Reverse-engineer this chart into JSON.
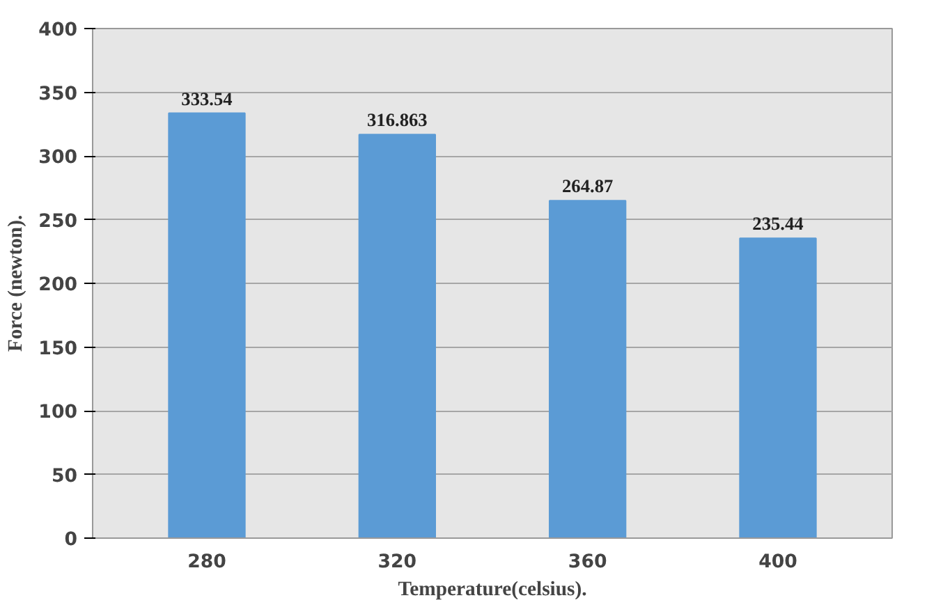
{
  "chart_data": {
    "type": "bar",
    "xlabel": "Temperature(celsius).",
    "ylabel": "Force (newton).",
    "categories": [
      "280",
      "320",
      "360",
      "400"
    ],
    "values": [
      333.54,
      316.863,
      264.87,
      235.44
    ],
    "color": "#5b9bd5",
    "ylim": [
      0,
      400
    ],
    "yticks": [
      0,
      50,
      100,
      150,
      200,
      250,
      300,
      350,
      400
    ],
    "grid": "y",
    "data_labels": true
  }
}
